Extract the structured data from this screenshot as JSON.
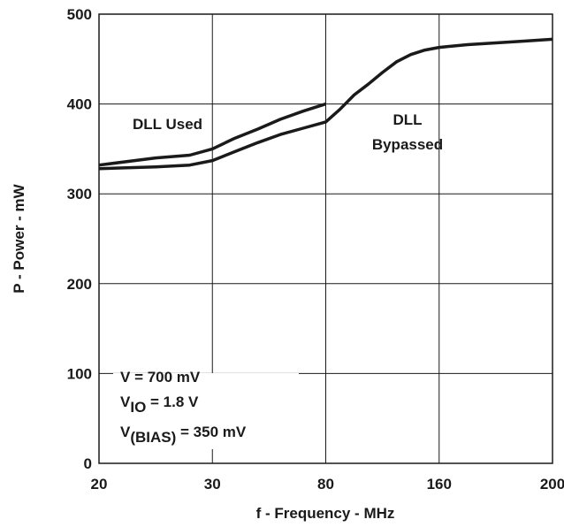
{
  "chart_data": {
    "type": "line",
    "xlabel": "f - Frequency - MHz",
    "ylabel": "P - Power - mW",
    "x_tick_labels": [
      "20",
      "30",
      "80",
      "160",
      "200"
    ],
    "y_ticks": [
      0,
      100,
      200,
      300,
      400,
      500
    ],
    "ylim": [
      0,
      500
    ],
    "grid": true,
    "series": [
      {
        "name": "DLL Used",
        "x": [
          20,
          25,
          28,
          30,
          40,
          50,
          60,
          70,
          80
        ],
        "y": [
          332,
          340,
          343,
          350,
          362,
          372,
          383,
          392,
          400
        ]
      },
      {
        "name": "DLL Bypassed",
        "x": [
          20,
          25,
          28,
          30,
          40,
          50,
          60,
          70,
          80,
          90,
          100,
          110,
          120,
          130,
          140,
          150,
          160,
          170,
          180,
          190,
          200
        ],
        "y": [
          328,
          330,
          332,
          337,
          347,
          357,
          366,
          373,
          380,
          394,
          410,
          422,
          435,
          447,
          455,
          460,
          463,
          466,
          468,
          470,
          472
        ]
      }
    ],
    "annotations": {
      "dll_used": "DLL Used",
      "dll_bypassed_line1": "DLL",
      "dll_bypassed_line2": "Bypassed"
    },
    "conditions": [
      {
        "main": "V",
        "sub": "",
        "rest": " = 700 mV"
      },
      {
        "main": "V",
        "sub": "IO",
        "rest": " = 1.8 V"
      },
      {
        "main": "V",
        "sub": "(BIAS)",
        "rest": " = 350 mV"
      }
    ]
  }
}
